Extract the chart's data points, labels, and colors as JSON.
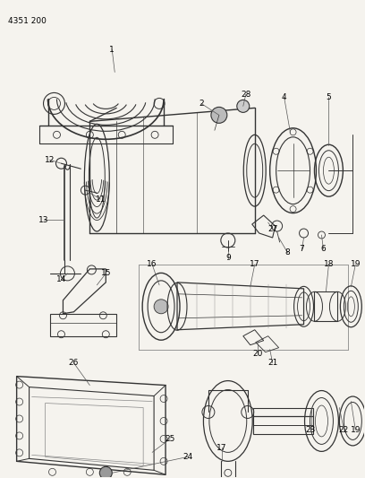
{
  "title_code": "4351 200",
  "bg": "#f5f3ee",
  "lc": "#333333",
  "fig_width": 4.08,
  "fig_height": 5.33,
  "dpi": 100,
  "label_fs": 6.5
}
